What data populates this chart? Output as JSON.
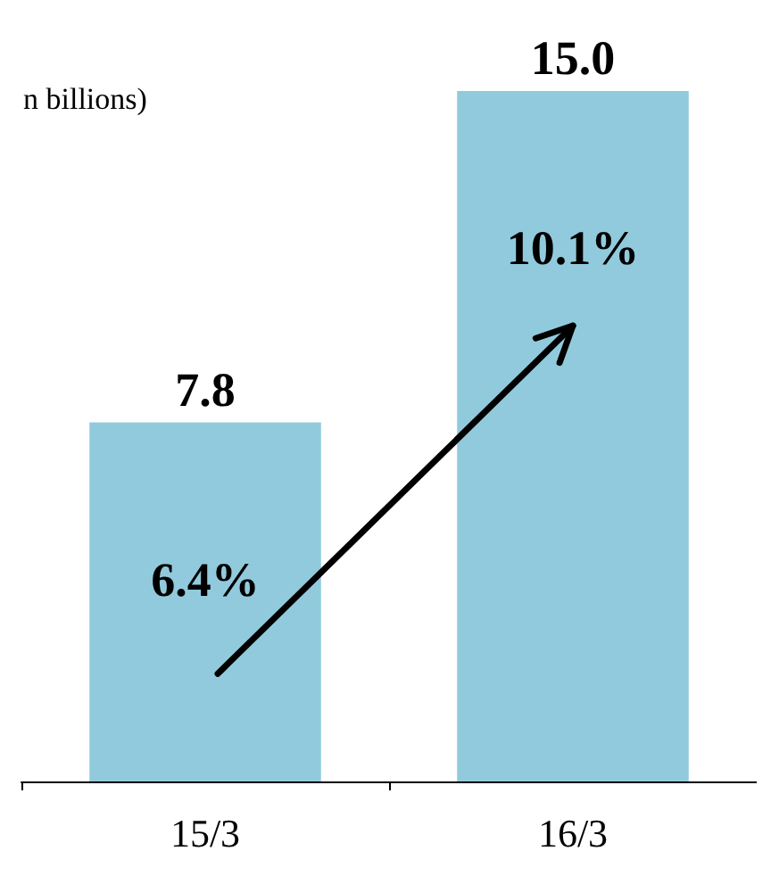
{
  "chart_data": {
    "type": "bar",
    "subtitle": "n billions)",
    "categories": [
      "15/3",
      "16/3"
    ],
    "values": [
      7.8,
      15.0
    ],
    "value_labels": [
      "7.8",
      "15.0"
    ],
    "color": "#92cadd",
    "grid": false,
    "annotations": [
      "6.4%",
      "10.1%"
    ]
  }
}
